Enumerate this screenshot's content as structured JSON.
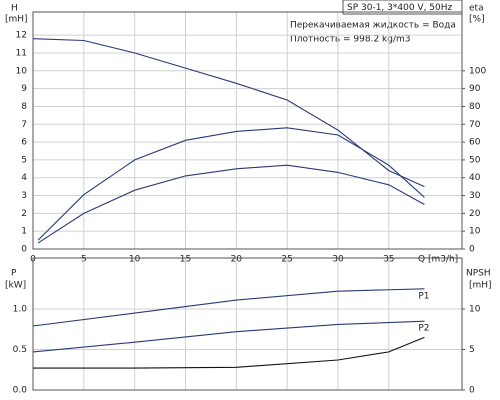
{
  "chart_data": [
    {
      "type": "line",
      "title": "SP 30-1, 3*400 V, 50Hz",
      "notes": [
        "Перекачиваемая жидкость = Вода",
        "Плотность = 998.2 kg/m3"
      ],
      "ylabel": "H",
      "yunit": "[mH]",
      "y2label": "eta",
      "y2unit": "[%]",
      "xlabel": "Q [m3/h]",
      "xlim": [
        0,
        42.2
      ],
      "xticks": [
        0,
        5,
        10,
        15,
        20,
        25,
        30,
        35
      ],
      "ylim": [
        0,
        13.3
      ],
      "yticks": [
        0,
        1,
        2,
        3,
        4,
        5,
        6,
        7,
        8,
        9,
        10,
        11,
        12
      ],
      "y2lim": [
        0,
        133
      ],
      "y2ticks": [
        0,
        10,
        20,
        30,
        40,
        50,
        60,
        70,
        80,
        90,
        100
      ],
      "grid": true,
      "series": [
        {
          "color": "#283a78",
          "x": [
            0,
            5,
            10,
            15,
            20,
            25,
            30,
            35,
            38.5
          ],
          "values": [
            11.8,
            11.7,
            11.0,
            10.15,
            9.3,
            8.36,
            6.67,
            4.4,
            3.5
          ]
        },
        {
          "color": "#283a78",
          "axis": "y2",
          "x": [
            0.5,
            5,
            10,
            15,
            20,
            25,
            30,
            35,
            38.5
          ],
          "values": [
            5,
            30.5,
            50,
            61,
            66,
            68,
            64,
            47,
            29
          ]
        },
        {
          "color": "#283a78",
          "axis": "y2",
          "x": [
            0.5,
            5,
            10,
            15,
            20,
            25,
            30,
            35,
            38.5
          ],
          "values": [
            3.4,
            20,
            33,
            41,
            45,
            47,
            43,
            36,
            25
          ]
        }
      ]
    },
    {
      "type": "line",
      "ylabel": "P",
      "yunit": "[kW]",
      "y2label": "NPSH",
      "y2unit": "[mH]",
      "xlim": [
        0,
        42.2
      ],
      "xticks": [
        0,
        5,
        10,
        15,
        20,
        25,
        30,
        35
      ],
      "xtick_labels": false,
      "ylim": [
        0,
        1.63
      ],
      "yticks": [
        {
          "value": 0,
          "label": "0.0"
        },
        0.5,
        {
          "value": 1,
          "label": "1.0"
        }
      ],
      "y2lim": [
        0,
        16.3
      ],
      "y2ticks": [
        0,
        5,
        10
      ],
      "grid": true,
      "series": [
        {
          "name": "P1",
          "color": "#283a78",
          "x": [
            0,
            10,
            20,
            30,
            38.5
          ],
          "values": [
            0.79,
            0.95,
            1.11,
            1.22,
            1.25
          ]
        },
        {
          "name": "P2",
          "color": "#283a78",
          "x": [
            0,
            10,
            20,
            30,
            38.5
          ],
          "values": [
            0.47,
            0.59,
            0.72,
            0.81,
            0.85
          ]
        },
        {
          "color": "#111111",
          "axis": "y2",
          "x": [
            0,
            10,
            20,
            30,
            35,
            38.5
          ],
          "values": [
            2.7,
            2.7,
            2.8,
            3.7,
            4.7,
            6.5
          ]
        }
      ]
    }
  ]
}
